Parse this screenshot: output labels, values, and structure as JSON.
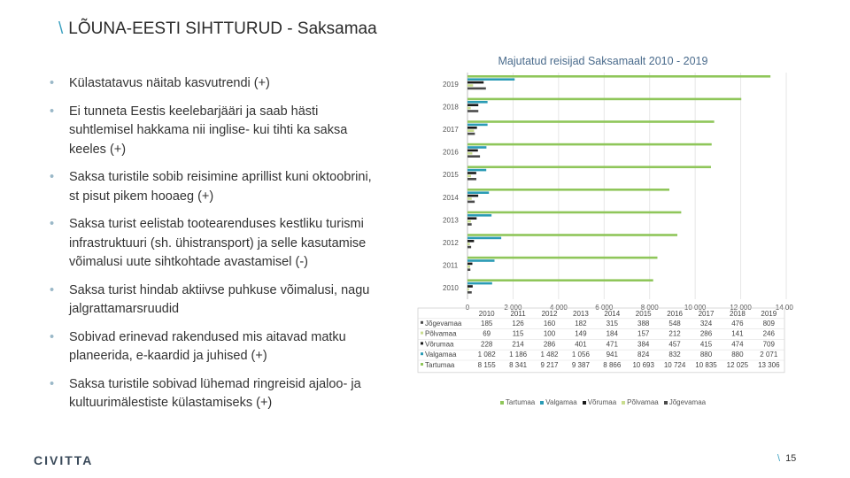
{
  "slide": {
    "title_prefix": "\\",
    "title": "LÕUNA-EESTI SIHTTURUD - Saksamaa",
    "bullets": [
      "Külastatavus näitab kasvutrendi (+)",
      "Ei tunneta Eestis keelebarjääri ja saab hästi suhtlemisel hakkama nii inglise- kui tihti ka saksa keeles (+)",
      "Saksa turistile sobib reisimine aprillist kuni oktoobrini, st pisut pikem hooaeg (+)",
      "Saksa turist eelistab tootearenduses kestliku turismi infrastruktuuri (sh. ühistransport) ja selle kasutamise võimalusi uute sihtkohtade avastamisel (-)",
      "Saksa turist hindab aktiivse puhkuse võimalusi, nagu jalgrattamarsruudid",
      "Sobivad erinevad rakendused mis aitavad matku planeerida, e-kaardid ja juhised (+)",
      "Saksa turistile sobivad lühemad ringreisid ajaloo- ja kultuurimälestiste külastamiseks (+)"
    ],
    "logo": "CIVITTA",
    "page_prefix": "\\",
    "page_number": "15"
  },
  "chart_data": {
    "type": "bar",
    "orientation": "horizontal",
    "title": "Majutatud reisijad Saksamaalt 2010 - 2019",
    "categories": [
      "2010",
      "2011",
      "2012",
      "2013",
      "2014",
      "2015",
      "2016",
      "2017",
      "2018",
      "2019"
    ],
    "xlim": [
      0,
      14000
    ],
    "x_ticks": [
      "0",
      "2 000",
      "4 000",
      "6 000",
      "8 000",
      "10 000",
      "12 000",
      "14 000"
    ],
    "grid": true,
    "legend_position": "bottom",
    "series": [
      {
        "name": "Jõgevamaa",
        "color": "#4a4a4a",
        "values": [
          185,
          126,
          160,
          182,
          315,
          388,
          548,
          324,
          476,
          809
        ],
        "labels": [
          "185",
          "126",
          "160",
          "182",
          "315",
          "388",
          "548",
          "324",
          "476",
          "809"
        ]
      },
      {
        "name": "Põlvamaa",
        "color": "#c9dd8e",
        "values": [
          69,
          115,
          100,
          149,
          184,
          157,
          212,
          286,
          141,
          246
        ],
        "labels": [
          "69",
          "115",
          "100",
          "149",
          "184",
          "157",
          "212",
          "286",
          "141",
          "246"
        ]
      },
      {
        "name": "Võrumaa",
        "color": "#1a1a1a",
        "values": [
          228,
          214,
          286,
          401,
          471,
          384,
          457,
          415,
          474,
          709
        ],
        "labels": [
          "228",
          "214",
          "286",
          "401",
          "471",
          "384",
          "457",
          "415",
          "474",
          "709"
        ]
      },
      {
        "name": "Valgamaa",
        "color": "#2a9bb5",
        "values": [
          1082,
          1186,
          1482,
          1056,
          941,
          824,
          832,
          880,
          880,
          2071
        ],
        "labels": [
          "1 082",
          "1 186",
          "1 482",
          "1 056",
          "941",
          "824",
          "832",
          "880",
          "880",
          "2 071"
        ]
      },
      {
        "name": "Tartumaa",
        "color": "#8fc65a",
        "values": [
          8155,
          8341,
          9217,
          9387,
          8866,
          10693,
          10724,
          10835,
          12025,
          13306
        ],
        "labels": [
          "8 155",
          "8 341",
          "9 217",
          "9 387",
          "8 866",
          "10 693",
          "10 724",
          "10 835",
          "12 025",
          "13 306"
        ]
      }
    ],
    "legend_order": [
      "Tartumaa",
      "Valgamaa",
      "Võrumaa",
      "Põlvamaa",
      "Jõgevamaa"
    ]
  }
}
